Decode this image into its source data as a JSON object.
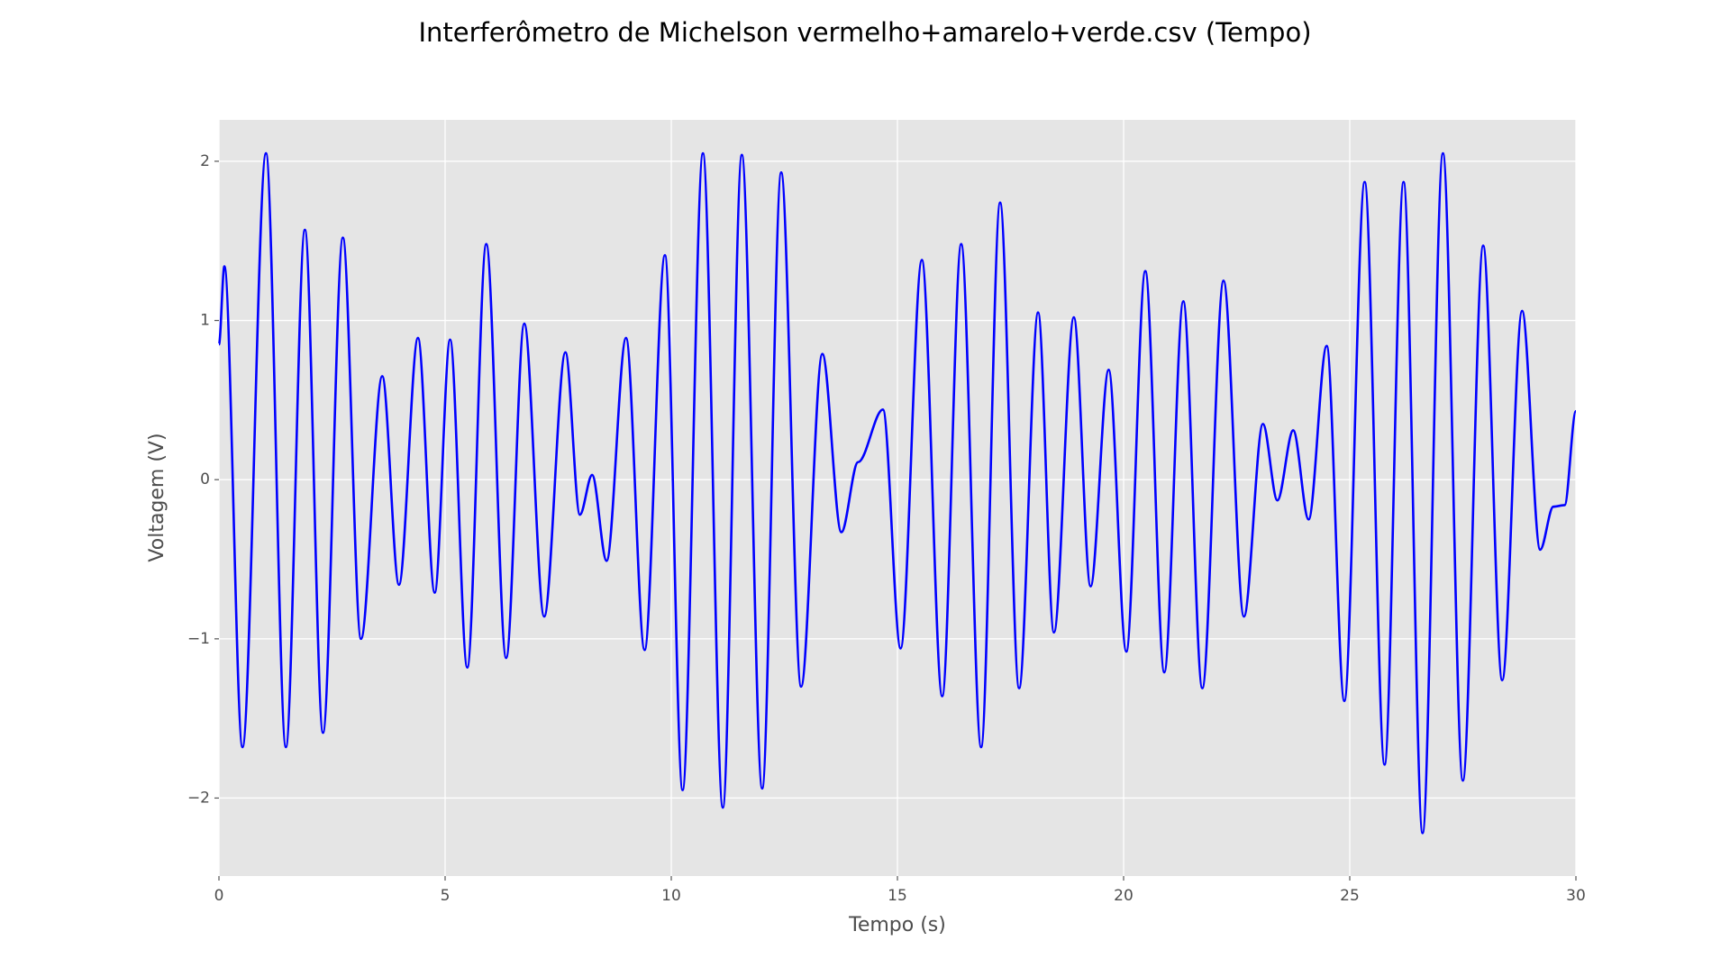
{
  "chart_data": {
    "type": "line",
    "title": "Interferômetro de Michelson vermelho+amarelo+verde.csv (Tempo)",
    "x_label": "Tempo (s)",
    "y_label": "Voltagem (V)",
    "xlim": [
      0,
      30
    ],
    "ylim": [
      -2.49,
      2.26
    ],
    "xticks": [
      0,
      5,
      10,
      15,
      20,
      25,
      30
    ],
    "yticks": [
      {
        "value": -2,
        "label": "−2"
      },
      {
        "value": -1,
        "label": "−1"
      },
      0,
      1,
      2
    ],
    "grid": true,
    "background": "#e5e5e5",
    "x": [
      0,
      0.12,
      0.52,
      1.04,
      1.48,
      1.9,
      2.3,
      2.74,
      3.14,
      3.61,
      3.98,
      4.4,
      4.77,
      5.11,
      5.49,
      5.91,
      6.35,
      6.75,
      7.19,
      7.66,
      7.98,
      8.25,
      8.57,
      9.0,
      9.41,
      9.86,
      10.25,
      10.7,
      11.14,
      11.56,
      12.01,
      12.43,
      12.87,
      13.34,
      13.76,
      14.13,
      14.68,
      15.07,
      15.54,
      15.99,
      16.41,
      16.85,
      17.27,
      17.69,
      18.11,
      18.46,
      18.9,
      19.27,
      19.67,
      20.06,
      20.48,
      20.9,
      21.32,
      21.74,
      22.21,
      22.66,
      23.08,
      23.4,
      23.75,
      24.09,
      24.49,
      24.88,
      25.33,
      25.77,
      26.19,
      26.61,
      27.06,
      27.5,
      27.95,
      28.37,
      28.81,
      29.21,
      29.5,
      29.75,
      30
    ],
    "series": [
      {
        "color": "#0000ff",
        "values": [
          0.85,
          1.34,
          -1.68,
          2.05,
          -1.68,
          1.57,
          -1.59,
          1.52,
          -1.0,
          0.65,
          -0.66,
          0.89,
          -0.71,
          0.88,
          -1.18,
          1.48,
          -1.12,
          0.98,
          -0.86,
          0.8,
          -0.22,
          0.03,
          -0.51,
          0.89,
          -1.07,
          1.41,
          -1.95,
          2.05,
          -2.06,
          2.04,
          -1.94,
          1.93,
          -1.3,
          0.79,
          -0.33,
          0.11,
          0.44,
          -1.06,
          1.38,
          -1.36,
          1.48,
          -1.68,
          1.74,
          -1.31,
          1.05,
          -0.96,
          1.02,
          -0.67,
          0.69,
          -1.08,
          1.31,
          -1.21,
          1.12,
          -1.31,
          1.25,
          -0.86,
          0.35,
          -0.13,
          0.31,
          -0.25,
          0.84,
          -1.39,
          1.87,
          -1.79,
          1.87,
          -2.22,
          2.05,
          -1.89,
          1.47,
          -1.26,
          1.06,
          -0.44,
          -0.17,
          -0.16,
          0.43
        ]
      }
    ]
  }
}
